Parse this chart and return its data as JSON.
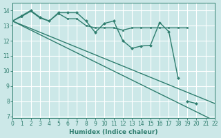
{
  "xlabel": "Humidex (Indice chaleur)",
  "bg_color": "#cce8e8",
  "grid_color": "#ffffff",
  "line_color": "#2e7d6e",
  "xlim": [
    0,
    22
  ],
  "ylim": [
    6.9,
    14.5
  ],
  "yticks": [
    7,
    8,
    9,
    10,
    11,
    12,
    13,
    14
  ],
  "xticks": [
    0,
    1,
    2,
    3,
    4,
    5,
    6,
    7,
    8,
    9,
    10,
    11,
    12,
    13,
    14,
    15,
    16,
    17,
    18,
    19,
    20,
    21,
    22
  ],
  "series": [
    {
      "x": [
        0,
        1,
        2,
        3,
        4,
        5,
        6,
        7,
        8,
        9,
        10,
        11,
        12,
        13,
        14,
        15,
        16,
        17,
        18,
        19,
        20,
        21,
        22
      ],
      "y": [
        13.3,
        13.65,
        14.0,
        13.55,
        13.3,
        13.85,
        13.85,
        13.85,
        13.3,
        12.55,
        13.15,
        13.3,
        12.0,
        11.5,
        11.65,
        11.7,
        13.2,
        12.6,
        9.55,
        null,
        null,
        null,
        null
      ],
      "marker": "D",
      "markersize": 2.0,
      "linewidth": 1.0
    },
    {
      "x": [
        0,
        1,
        2,
        3,
        4,
        5,
        6,
        7,
        8,
        9,
        10,
        11,
        12,
        13,
        14,
        15,
        16,
        17,
        18,
        19,
        20,
        21,
        22
      ],
      "y": [
        13.3,
        13.6,
        13.95,
        13.5,
        13.3,
        13.8,
        13.45,
        13.45,
        13.0,
        12.85,
        12.85,
        12.85,
        12.7,
        12.85,
        12.85,
        12.85,
        12.85,
        12.85,
        12.85,
        12.85,
        null,
        null,
        null
      ],
      "marker": "s",
      "markersize": 2.0,
      "linewidth": 1.0
    },
    {
      "x": [
        0,
        22
      ],
      "y": [
        13.3,
        6.7
      ],
      "marker": null,
      "markersize": 0,
      "linewidth": 1.0
    },
    {
      "x": [
        0,
        22
      ],
      "y": [
        13.3,
        7.85
      ],
      "marker": null,
      "markersize": 0,
      "linewidth": 1.0
    },
    {
      "x": [
        19,
        20,
        21,
        22
      ],
      "y": [
        8.0,
        7.85,
        null,
        6.75
      ],
      "marker": "D",
      "markersize": 2.0,
      "linewidth": 1.0
    }
  ]
}
